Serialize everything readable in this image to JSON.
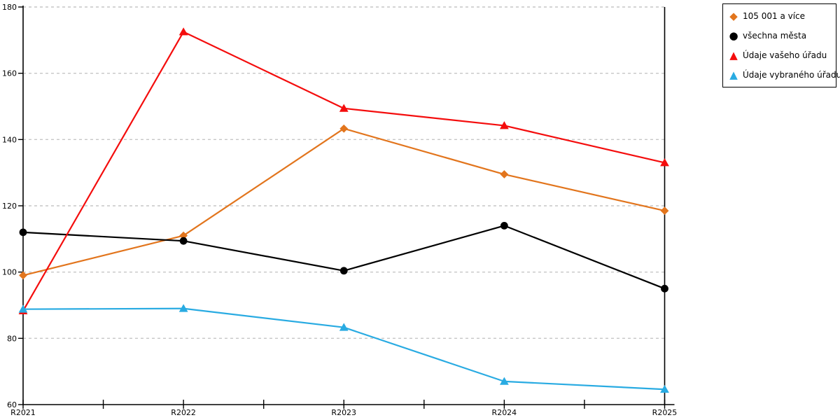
{
  "chart_data": {
    "type": "line",
    "title": "",
    "xlabel": "",
    "ylabel": "",
    "categories": [
      "R2021",
      "R2022",
      "R2023",
      "R2024",
      "R2025"
    ],
    "series": [
      {
        "name": "105 001 a více",
        "color": "#E2751D",
        "marker": "diamond",
        "values": [
          99,
          111,
          143.3,
          129.5,
          118.5
        ]
      },
      {
        "name": "všechna města",
        "color": "#000000",
        "marker": "circle",
        "values": [
          112,
          109.4,
          100.4,
          114,
          95
        ]
      },
      {
        "name": "Údaje vašeho úřadu",
        "color": "#F40D0D",
        "marker": "triangle",
        "values": [
          88.3,
          172.5,
          149.4,
          144.2,
          133
        ]
      },
      {
        "name": "Údaje vybraného úřadu",
        "color": "#29ABE2",
        "marker": "triangle",
        "values": [
          88.8,
          89,
          83.3,
          67,
          64.6
        ]
      }
    ],
    "ylim": [
      60,
      180
    ],
    "ytick_step": 20,
    "yticks": [
      60,
      80,
      100,
      120,
      140,
      160,
      180
    ],
    "grid": "horizontal-dashed",
    "gridline_color": "#C6C6C6",
    "axis_color": "#000000",
    "legend_position": "top-right-outside",
    "legend_border_color": "#000000",
    "legend_background": "#ffffff",
    "plot_background": "#ffffff"
  }
}
